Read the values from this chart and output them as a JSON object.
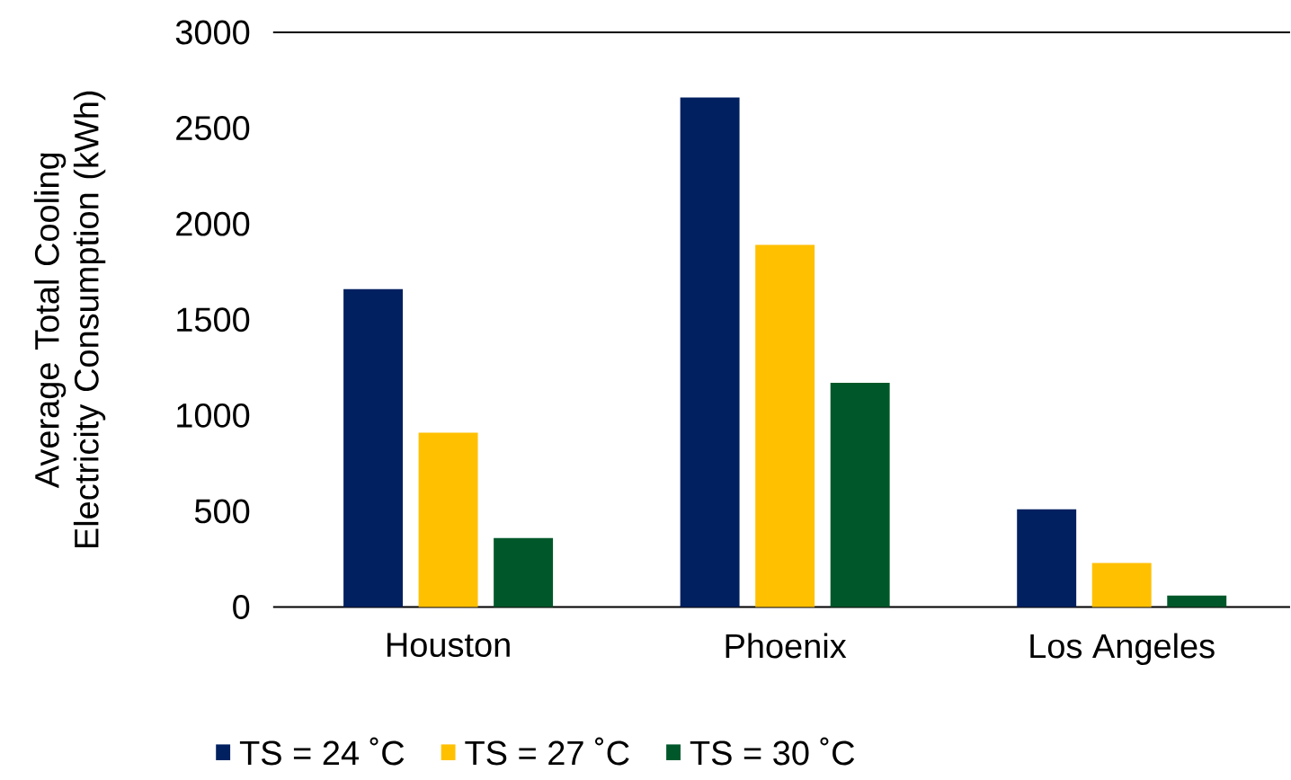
{
  "chart_data": {
    "type": "bar",
    "ylabel": "Average Total Cooling Electricity Consumption (kWh)",
    "categories": [
      "Houston",
      "Phoenix",
      "Los Angeles"
    ],
    "series": [
      {
        "name": "TS = 24 ˚C",
        "color": "#002060",
        "values": [
          1660,
          2660,
          510
        ]
      },
      {
        "name": "TS = 27 ˚C",
        "color": "#ffc000",
        "values": [
          910,
          1890,
          230
        ]
      },
      {
        "name": "TS = 30 ˚C",
        "color": "#00582a",
        "values": [
          360,
          1170,
          60
        ]
      }
    ],
    "ylim": [
      0,
      3000
    ],
    "yticks": [
      0,
      500,
      1000,
      1500,
      2000,
      2500,
      3000
    ],
    "grid": false,
    "legend": "bottom"
  }
}
